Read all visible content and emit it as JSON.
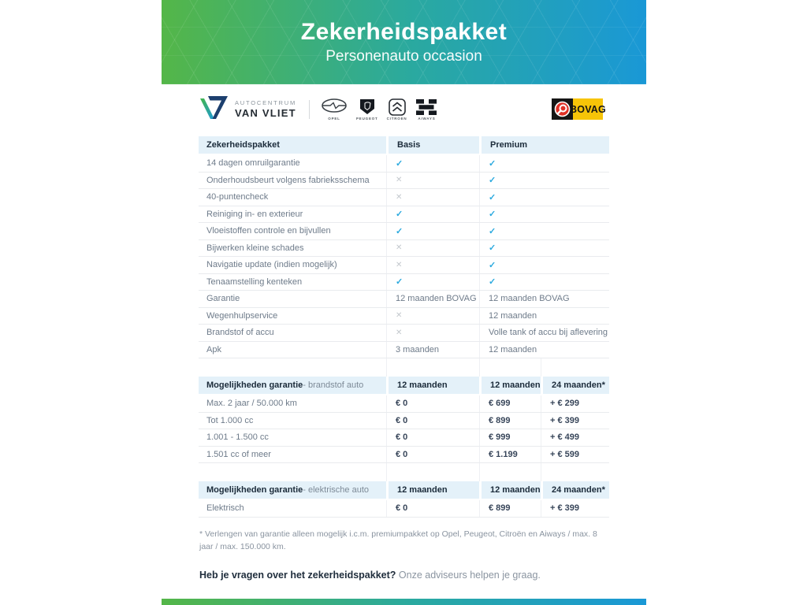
{
  "banner": {
    "title": "Zekerheidspakket",
    "subtitle": "Personenauto occasion"
  },
  "branding": {
    "dealer_top": "AUTOCENTRUM",
    "dealer_bottom": "VAN VLIET",
    "brand_logos": [
      {
        "name": "opel",
        "caption": "OPEL"
      },
      {
        "name": "peugeot",
        "caption": "PEUGEOT"
      },
      {
        "name": "citroen",
        "caption": "CITROEN"
      },
      {
        "name": "aiways",
        "caption": "AIWAYS"
      }
    ],
    "bovag_label": "BOVAG"
  },
  "colors": {
    "gradient_green": "#54b648",
    "gradient_blue": "#1a98d6",
    "header_bg": "#e4f1f9",
    "check": "#2aa9de",
    "cross": "#c3c8cd",
    "bovag_yellow": "#f7c408"
  },
  "tables": [
    {
      "layout": "g3",
      "columns": [
        {
          "bold": "Zekerheidspakket"
        },
        {
          "bold": "Basis"
        },
        {
          "bold": "Premium"
        }
      ],
      "value_style": "plain",
      "rows": [
        {
          "label": "14 dagen omruilgarantie",
          "values": [
            "check",
            "check"
          ]
        },
        {
          "label": "Onderhoudsbeurt volgens fabrieksschema",
          "values": [
            "cross",
            "check"
          ]
        },
        {
          "label": "40-puntencheck",
          "values": [
            "cross",
            "check"
          ]
        },
        {
          "label": "Reiniging in- en exterieur",
          "values": [
            "check",
            "check"
          ]
        },
        {
          "label": "Vloeistoffen controle en bijvullen",
          "values": [
            "check",
            "check"
          ]
        },
        {
          "label": "Bijwerken kleine schades",
          "values": [
            "cross",
            "check"
          ]
        },
        {
          "label": "Navigatie update (indien mogelijk)",
          "values": [
            "cross",
            "check"
          ]
        },
        {
          "label": "Tenaamstelling kenteken",
          "values": [
            "check",
            "check"
          ]
        },
        {
          "label": "Garantie",
          "values": [
            "12 maanden BOVAG",
            "12 maanden BOVAG"
          ]
        },
        {
          "label": "Wegenhulpservice",
          "values": [
            "cross",
            "12 maanden"
          ]
        },
        {
          "label": "Brandstof of accu",
          "values": [
            "cross",
            "Volle tank of accu bij aflevering"
          ]
        },
        {
          "label": "Apk",
          "values": [
            "3 maanden",
            "12 maanden"
          ]
        }
      ]
    },
    {
      "layout": "g4",
      "columns": [
        {
          "bold": "Mogelijkheden garantie",
          "light": " - brandstof auto"
        },
        {
          "bold": "12 maanden"
        },
        {
          "bold": "12 maanden"
        },
        {
          "bold": "24 maanden*"
        }
      ],
      "value_style": "price",
      "rows": [
        {
          "label": "Max. 2 jaar / 50.000 km",
          "values": [
            "€ 0",
            "€ 699",
            "+ € 299"
          ]
        },
        {
          "label": "Tot 1.000 cc",
          "values": [
            "€ 0",
            "€ 899",
            "+ € 399"
          ]
        },
        {
          "label": "1.001 - 1.500 cc",
          "values": [
            "€ 0",
            "€ 999",
            "+ € 499"
          ]
        },
        {
          "label": "1.501 cc of meer",
          "values": [
            "€ 0",
            "€ 1.199",
            "+ € 599"
          ]
        }
      ]
    },
    {
      "layout": "g4",
      "columns": [
        {
          "bold": "Mogelijkheden garantie",
          "light": " - elektrische auto"
        },
        {
          "bold": "12 maanden"
        },
        {
          "bold": "12 maanden"
        },
        {
          "bold": "24 maanden*"
        }
      ],
      "value_style": "price",
      "rows": [
        {
          "label": "Elektrisch",
          "values": [
            "€ 0",
            "€ 899",
            "+ € 399"
          ]
        }
      ]
    }
  ],
  "footnote": "* Verlengen van garantie alleen mogelijk i.c.m. premiumpakket op Opel, Peugeot, Citroën en Aiways / max. 8 jaar / max. 150.000 km.",
  "closing": {
    "bold": "Heb je vragen over het zekerheidspakket?",
    "rest": " Onze adviseurs helpen je graag."
  }
}
